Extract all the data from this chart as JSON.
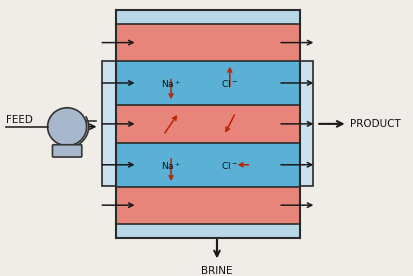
{
  "bg_color": "#f0ede8",
  "blue_color": "#5ab0d5",
  "pink_color": "#e8857a",
  "light_blue": "#b8d8e8",
  "border_color": "#2a2a2a",
  "arrow_color": "#1a1a1a",
  "ion_arrow_color": "#c02000",
  "feed_label": "FEED",
  "product_label": "PRODUCT",
  "brine_label": "BRINE"
}
